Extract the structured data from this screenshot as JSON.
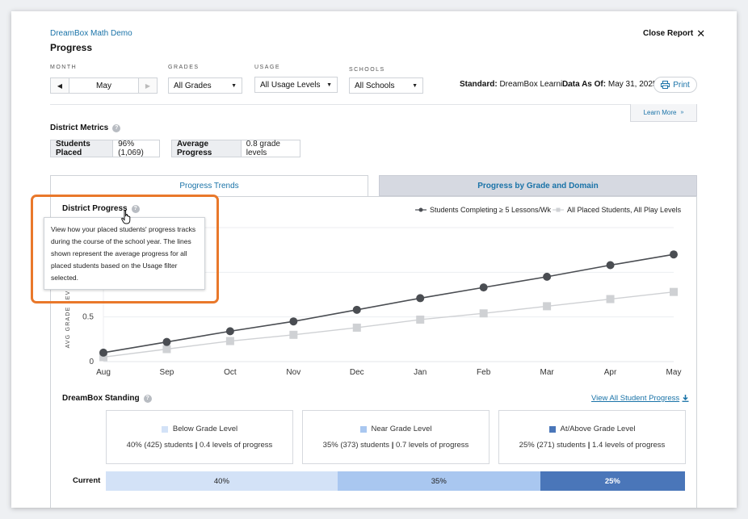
{
  "header": {
    "app_name": "DreamBox Math Demo",
    "title": "Progress",
    "close_label": "Close Report"
  },
  "filters": {
    "month": {
      "label": "MONTH",
      "value": "May"
    },
    "grades": {
      "label": "GRADES",
      "value": "All Grades"
    },
    "usage": {
      "label": "USAGE",
      "value": "All Usage Levels"
    },
    "schools": {
      "label": "SCHOOLS",
      "value": "All Schools"
    }
  },
  "meta": {
    "standard_label": "Standard:",
    "standard_value": "DreamBox Learni...",
    "data_as_of_label": "Data As Of:",
    "data_as_of_value": "May 31, 2025",
    "print_label": "Print"
  },
  "learn_more": "Learn More",
  "district_metrics": {
    "title": "District Metrics",
    "students_placed_label": "Students Placed",
    "students_placed_value": "96% (1,069)",
    "average_progress_label": "Average Progress",
    "average_progress_value": "0.8 grade levels"
  },
  "tabs": {
    "active": "Progress Trends",
    "inactive": "Progress by Grade and Domain"
  },
  "chart_section": {
    "title": "District Progress",
    "tooltip": "View how your placed students' progress tracks during the course of the school year. The lines shown represent the average progress for all placed students based on the Usage filter selected."
  },
  "chart_data": {
    "type": "line",
    "ylabel": "AVG GRADE LEVEL",
    "categories": [
      "Aug",
      "Sep",
      "Oct",
      "Nov",
      "Dec",
      "Jan",
      "Feb",
      "Mar",
      "Apr",
      "May"
    ],
    "y_ticks": [
      "0",
      "0.5"
    ],
    "ylim": [
      0,
      1.5
    ],
    "grid": true,
    "legend_position": "top-right",
    "series": [
      {
        "name": "Students Completing ≥ 5 Lessons/Wk",
        "color": "#4a4d52",
        "marker": "circle",
        "values": [
          0.1,
          0.22,
          0.34,
          0.45,
          0.58,
          0.71,
          0.83,
          0.95,
          1.08,
          1.2
        ]
      },
      {
        "name": "All Placed Students, All Play Levels",
        "color": "#cfd1d4",
        "marker": "square",
        "values": [
          0.05,
          0.14,
          0.23,
          0.3,
          0.38,
          0.47,
          0.54,
          0.62,
          0.7,
          0.78
        ]
      }
    ]
  },
  "standing": {
    "title": "DreamBox Standing",
    "view_all_label": "View All Student Progress",
    "current_label": "Current",
    "levels": [
      {
        "label": "Below Grade Level",
        "desc_students": "40% (425) students",
        "desc_progress": "0.4 levels of progress",
        "color": "#d3e2f7",
        "percent": 40,
        "bar_label": "40%",
        "bar_text_color": "#222222"
      },
      {
        "label": "Near Grade Level",
        "desc_students": "35% (373) students",
        "desc_progress": "0.7 levels of progress",
        "color": "#a9c7f0",
        "percent": 35,
        "bar_label": "35%",
        "bar_text_color": "#222222"
      },
      {
        "label": "At/Above Grade Level",
        "desc_students": "25% (271) students",
        "desc_progress": "1.4 levels of progress",
        "color": "#4a76b9",
        "percent": 25,
        "bar_label": "25%",
        "bar_text_color": "#ffffff"
      }
    ]
  }
}
